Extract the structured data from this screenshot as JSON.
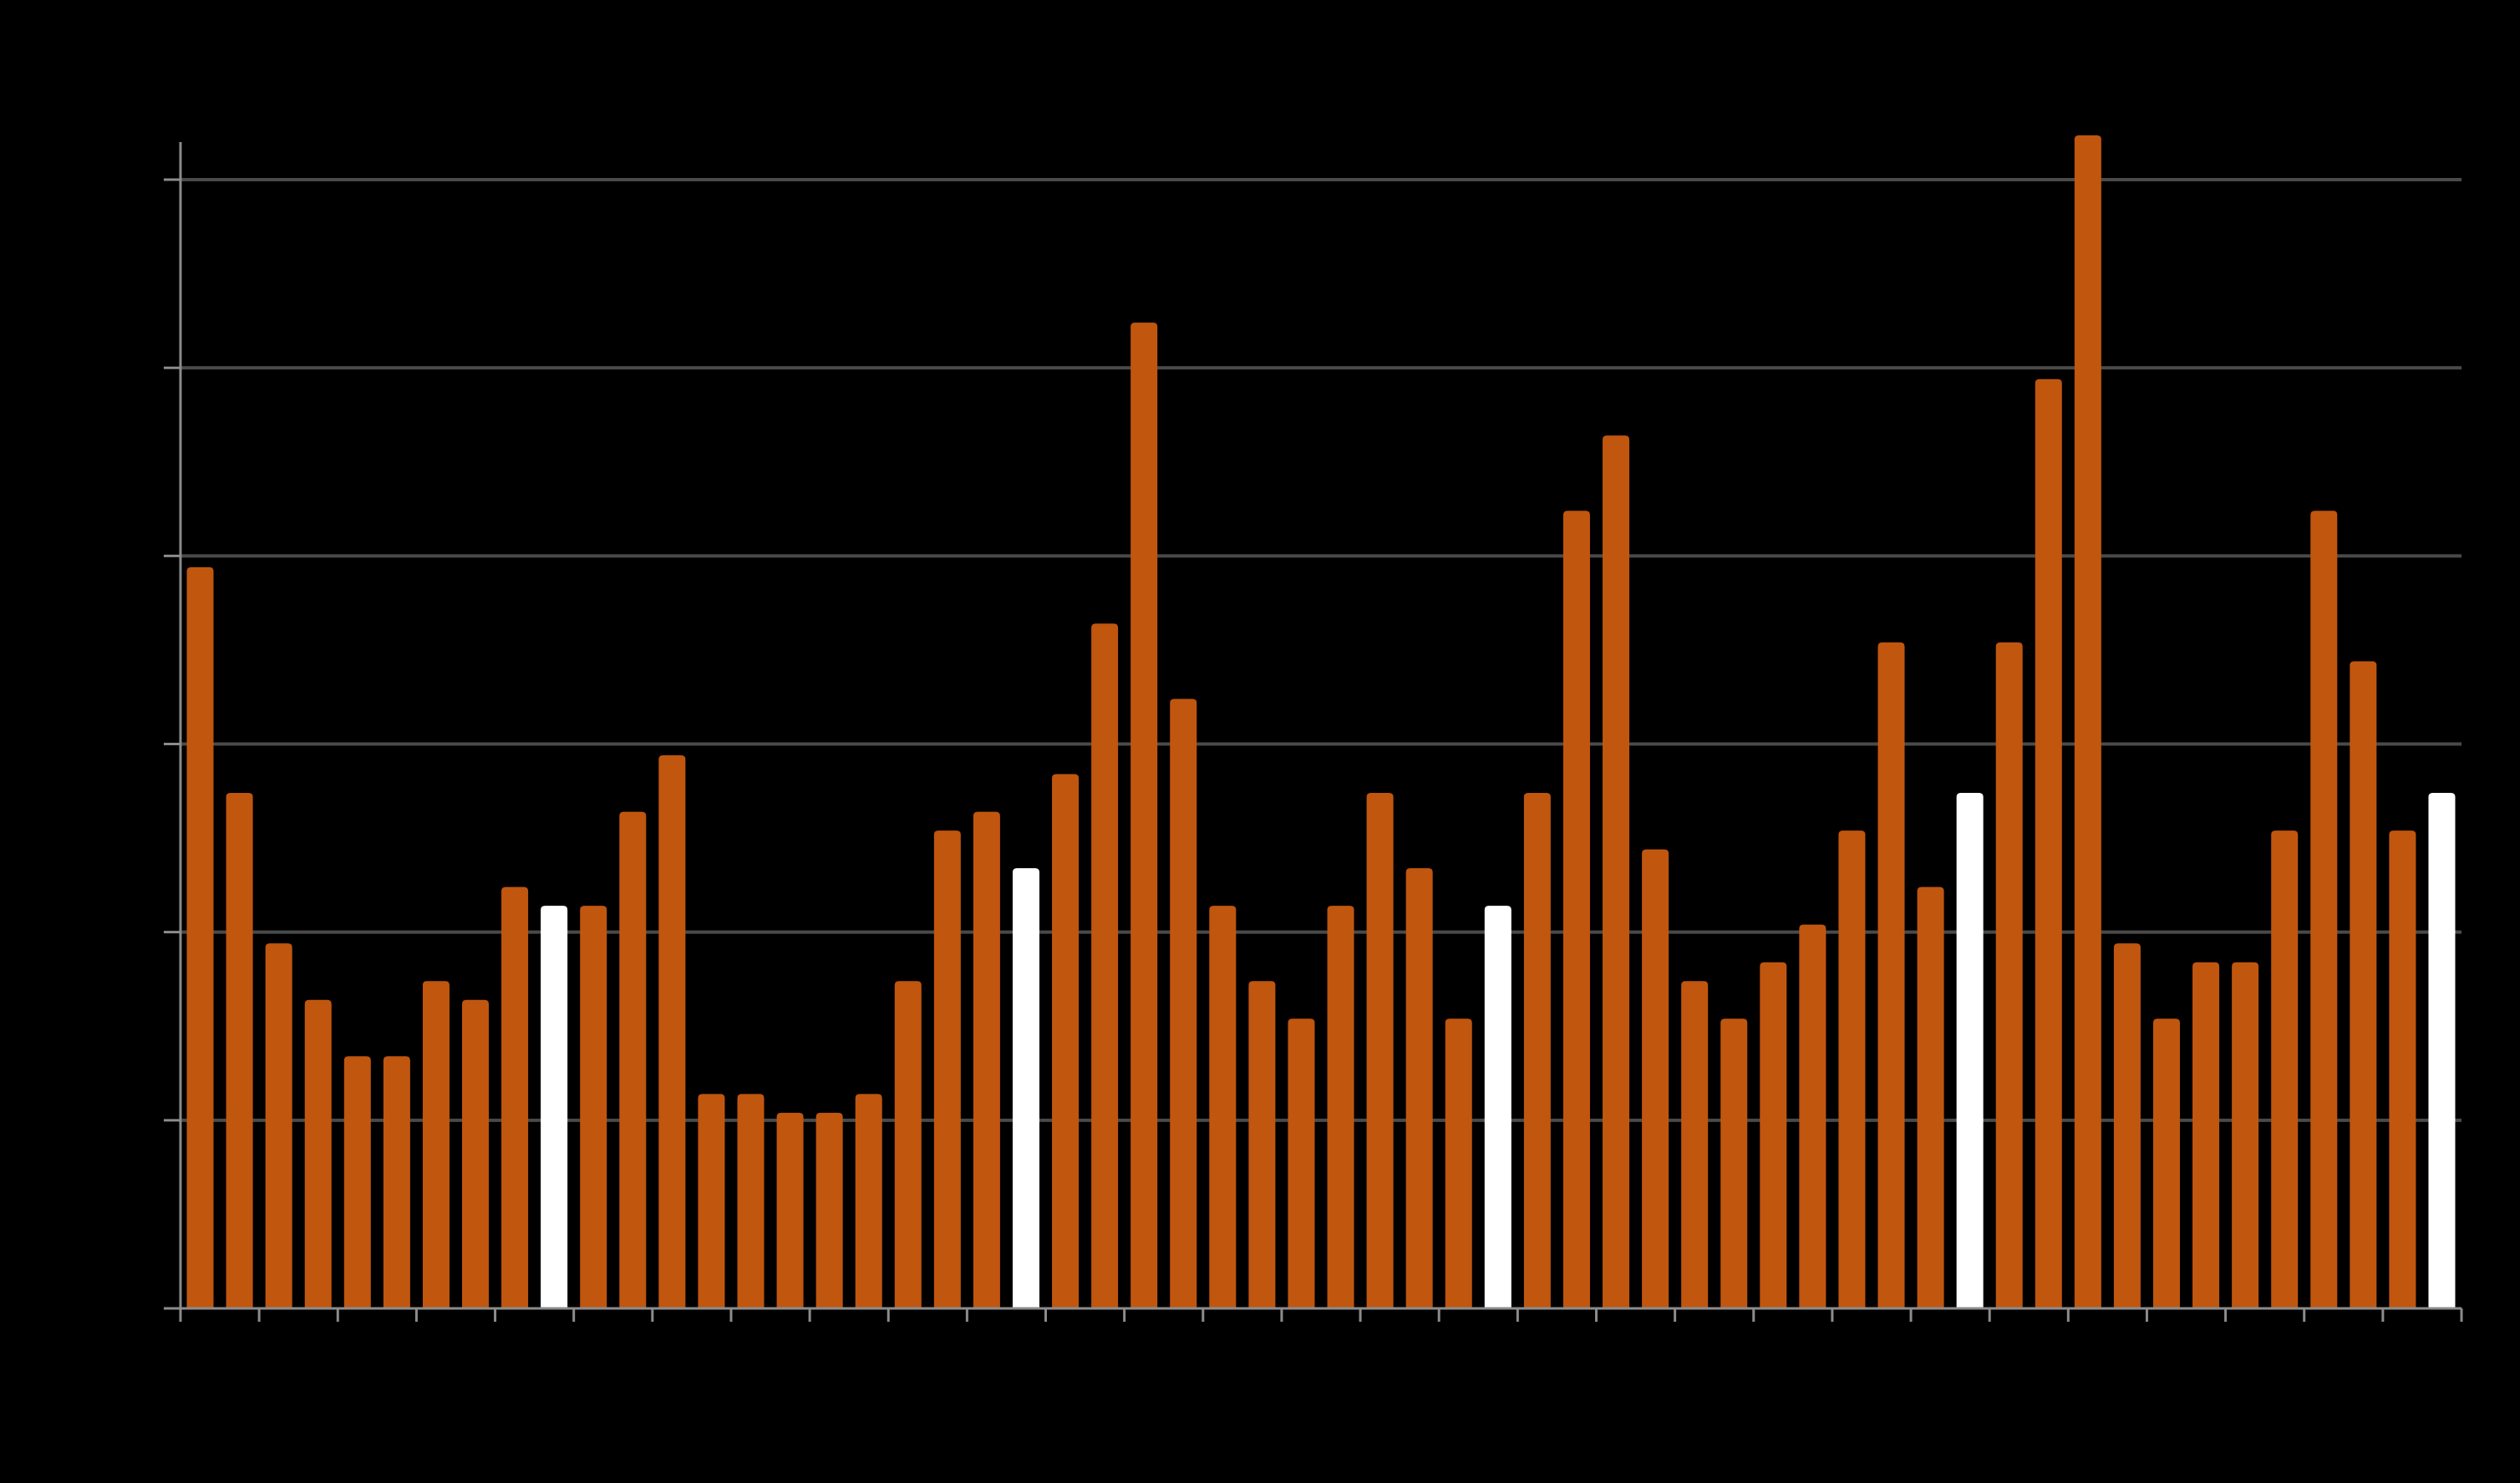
{
  "chart_data": {
    "type": "bar",
    "title": "",
    "xlabel": "",
    "ylabel": "",
    "ylim": [
      0,
      31
    ],
    "grid": true,
    "colors": {
      "background": "#000000",
      "bar": "#c1560f",
      "highlight": "#ffffff",
      "grid": "#4a4a4a",
      "axis": "#8c8c8c"
    },
    "series": [
      {
        "values": [
          19.7,
          13.7,
          9.7,
          8.2,
          6.7,
          6.7,
          8.7,
          8.2,
          11.2,
          10.7,
          10.7,
          13.2,
          14.7,
          5.7,
          5.7,
          5.2,
          5.2,
          5.7,
          8.7,
          12.7,
          13.2,
          11.7,
          14.2,
          18.2,
          26.2,
          16.2,
          10.7,
          8.7,
          7.7,
          10.7,
          13.7,
          11.7,
          7.7,
          10.7,
          13.7,
          21.2,
          23.2,
          12.2,
          8.7,
          7.7,
          9.2,
          10.2,
          12.7,
          17.7,
          11.2,
          13.7,
          17.7,
          24.7,
          31.7,
          9.7,
          7.7,
          9.2,
          9.2,
          12.7,
          21.2,
          17.2,
          12.7,
          13.7
        ],
        "highlighted": [
          false,
          false,
          false,
          false,
          false,
          false,
          false,
          false,
          false,
          true,
          false,
          false,
          false,
          false,
          false,
          false,
          false,
          false,
          false,
          false,
          false,
          true,
          false,
          false,
          false,
          false,
          false,
          false,
          false,
          false,
          false,
          false,
          false,
          true,
          false,
          false,
          false,
          false,
          false,
          false,
          false,
          false,
          false,
          false,
          false,
          true,
          false,
          false,
          false,
          false,
          false,
          false,
          false,
          false,
          false,
          false,
          false,
          true
        ]
      }
    ]
  }
}
